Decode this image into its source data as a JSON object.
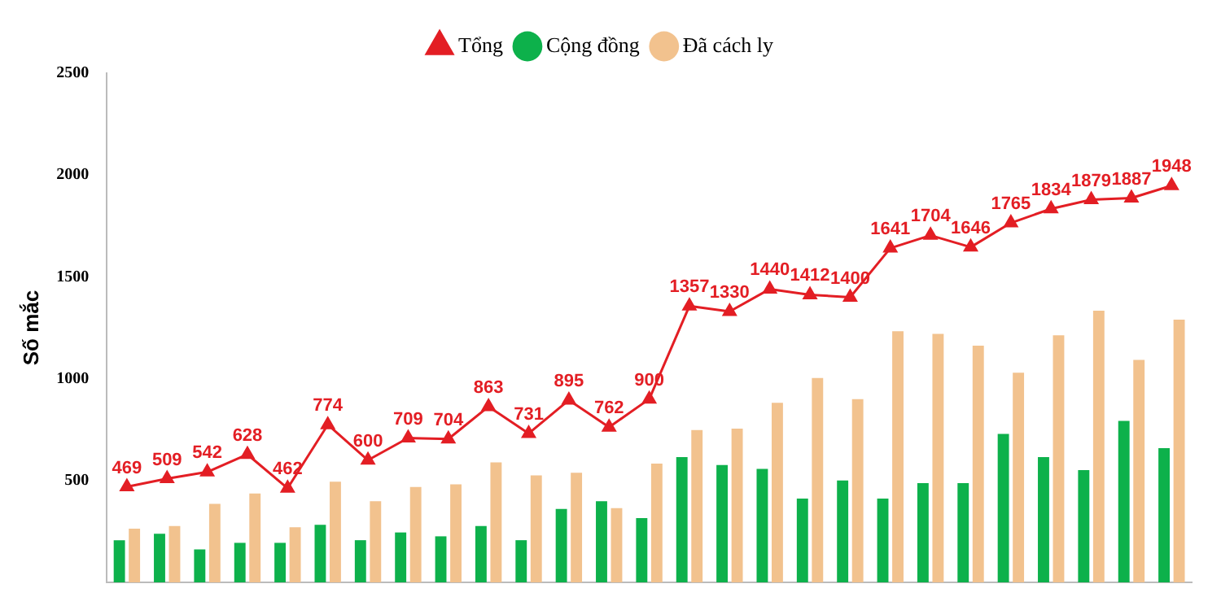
{
  "chart_data": {
    "type": "bar",
    "ylabel": "Số mắc",
    "categories": [
      null,
      null,
      null,
      null,
      null,
      null,
      null,
      null,
      null,
      null,
      null,
      null,
      null,
      null,
      null,
      null,
      null,
      null,
      null,
      null,
      null,
      null,
      null,
      null,
      null,
      null,
      null
    ],
    "series": [
      {
        "name": "Cộng đồng",
        "color": "#0db14b",
        "values": [
          207,
          239,
          162,
          194,
          194,
          283,
          207,
          245,
          226,
          277,
          207,
          360,
          398,
          315,
          615,
          576,
          557,
          411,
          500,
          411,
          487,
          487,
          729,
          615,
          551,
          793,
          659
        ]
      },
      {
        "name": "Đã cách ly",
        "color": "#f2c28e",
        "values": [
          264,
          277,
          385,
          436,
          271,
          494,
          398,
          468,
          481,
          589,
          525,
          538,
          364,
          583,
          748,
          755,
          882,
          1003,
          900,
          1233,
          1220,
          1162,
          1029,
          1213,
          1334,
          1092,
          1290
        ]
      },
      {
        "name": "Tổng",
        "type": "line",
        "color": "#e31e24",
        "values": [
          469,
          509,
          542,
          628,
          462,
          774,
          600,
          709,
          704,
          863,
          731,
          895,
          762,
          900,
          1357,
          1330,
          1440,
          1412,
          1400,
          1641,
          1704,
          1646,
          1765,
          1834,
          1879,
          1887,
          1948
        ],
        "value_labels": [
          "469",
          "509",
          "542",
          "628",
          "462",
          "774",
          "600",
          "709",
          "704",
          "863",
          "731",
          "895",
          "762",
          "900",
          "1357",
          "1330",
          "1440",
          "1412",
          "1400",
          "1641",
          "1704",
          "1646",
          "1765",
          "1834",
          "1879",
          "1887",
          "1948"
        ]
      }
    ],
    "ylim": [
      0,
      2500
    ],
    "yticks": [
      500,
      1000,
      1500,
      2000,
      2500
    ],
    "grid": false,
    "legend": "top",
    "marker": "triangle",
    "line_style": "solid"
  }
}
